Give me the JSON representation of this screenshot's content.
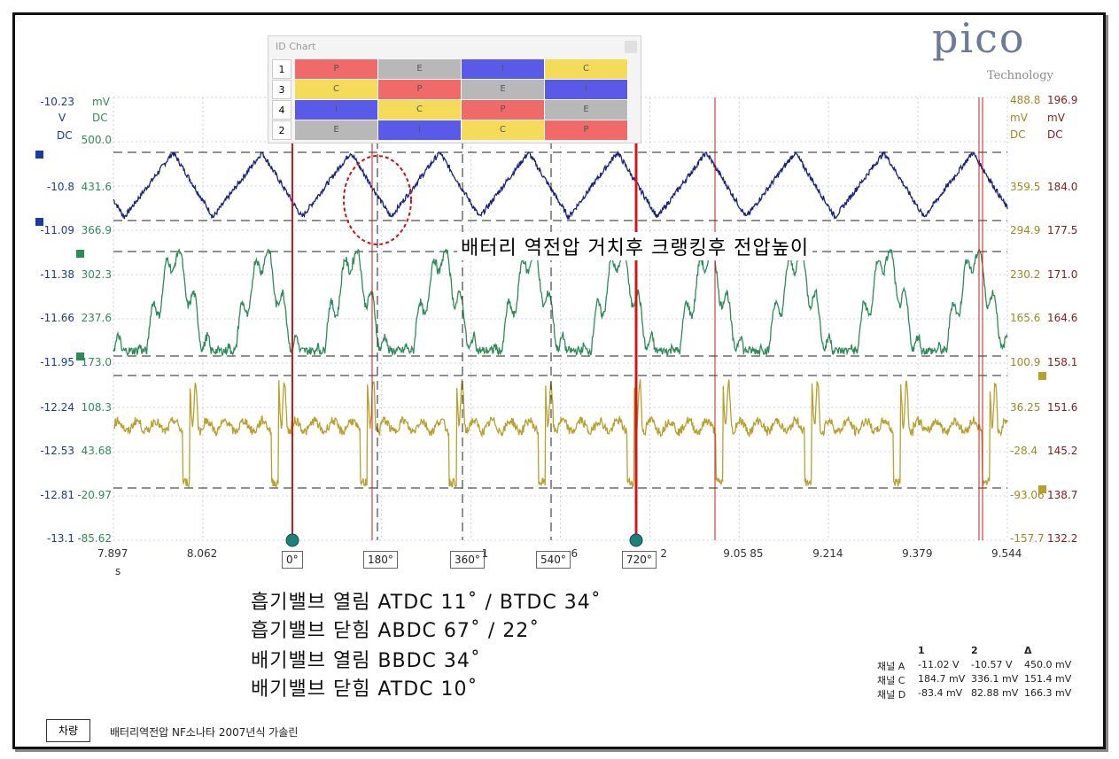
{
  "logo": {
    "text": "pico",
    "sub": "Technology"
  },
  "id_chart": {
    "title": "ID Chart",
    "rows": [
      {
        "num": "1",
        "cells": [
          "P",
          "E",
          "I",
          "C"
        ]
      },
      {
        "num": "3",
        "cells": [
          "C",
          "P",
          "E",
          "I"
        ]
      },
      {
        "num": "4",
        "cells": [
          "I",
          "C",
          "P",
          "E"
        ]
      },
      {
        "num": "2",
        "cells": [
          "E",
          "I",
          "C",
          "P"
        ]
      }
    ],
    "colors": {
      "P": "#f06a6a",
      "E": "#b8b8b8",
      "I": "#5a5ae8",
      "C": "#f4dc5a"
    }
  },
  "annotation": "배터리 역전압 거치후 크랭킹후 전압높이",
  "notes": [
    "흡기밸브 열림 ATDC 11˚ / BTDC 34˚",
    "흡기밸브 닫힘 ABDC 67˚ / 22˚",
    "배기밸브 열림 BBDC 34˚",
    "배기밸브 닫힘 ATDC 10˚"
  ],
  "cursors": [
    "0°",
    "180°",
    "360°",
    "540°",
    "720°"
  ],
  "measurements": {
    "headers": [
      "1",
      "2",
      "Δ"
    ],
    "rows": [
      {
        "label": "채널 A",
        "v1": "-11.02 V",
        "v2": "-10.57 V",
        "d": "450.0 mV"
      },
      {
        "label": "채널 C",
        "v1": "184.7 mV",
        "v2": "336.1 mV",
        "d": "151.4 mV"
      },
      {
        "label": "채널 D",
        "v1": "-83.4 mV",
        "v2": "82.88 mV",
        "d": "166.3 mV"
      }
    ]
  },
  "footer": {
    "button": "차량",
    "text": "배터리역전압 NF소나타 2007년식 가솔린"
  },
  "chart_data": {
    "type": "line",
    "xlabel": "s",
    "x_ticks": [
      "7.897",
      "8.062",
      "",
      "",
      "",
      "",
      "",
      "9.05",
      "9.214",
      "9.379",
      "9.544"
    ],
    "x_tick_partials": [
      "",
      "",
      "",
      "",
      "1",
      "6",
      "2",
      "85",
      "",
      "",
      ""
    ],
    "xlim": [
      7.897,
      9.544
    ],
    "axes": {
      "a_units": [
        "V",
        "DC"
      ],
      "c_units": [
        "mV",
        "DC"
      ],
      "d_units": [
        "mV",
        "DC"
      ],
      "b_units": [
        "mV",
        "DC"
      ],
      "a_top": "-10.23",
      "c_top_unit": "mV",
      "a_ticks": [
        "-10.8",
        "-11.09",
        "-11.38",
        "-11.66",
        "-11.95",
        "-12.24",
        "-12.53",
        "-12.81",
        "-13.1"
      ],
      "c_ticks": [
        "500.0",
        "431.6",
        "366.9",
        "302.3",
        "237.6",
        "173.0",
        "108.3",
        "43.68",
        "-20.97",
        "-85.62"
      ],
      "d_ticks": [
        "488.8",
        "359.5",
        "294.9",
        "230.2",
        "165.6",
        "100.9",
        "36.25",
        "-28.4",
        "-93.06",
        "-157.7"
      ],
      "e_ticks": [
        "196.9",
        "184.0",
        "177.5",
        "171.0",
        "164.6",
        "158.1",
        "151.6",
        "145.2",
        "138.7",
        "132.2"
      ]
    },
    "series": [
      {
        "name": "A",
        "color": "#1a237e",
        "period": 0.1637,
        "phase": 0.02,
        "ymin": -11.05,
        "ymax": -10.45,
        "shape": "triangle"
      },
      {
        "name": "C",
        "color": "#2e8b57",
        "period": 0.1637,
        "phase": 0.04,
        "ymin": 165,
        "ymax": 336,
        "shape": "peak"
      },
      {
        "name": "D",
        "color": "#b8a030",
        "period": 0.1637,
        "phase": 0.0,
        "ymin": -93,
        "ymax": 83,
        "shape": "spike"
      }
    ],
    "grid": true
  }
}
